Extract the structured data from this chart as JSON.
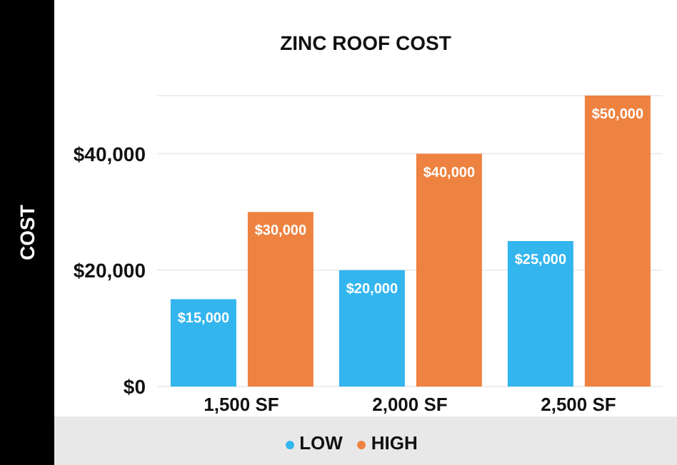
{
  "chart_data": {
    "type": "bar",
    "title": "ZINC ROOF COST",
    "ylabel": "COST",
    "categories": [
      "1,500 SF",
      "2,000 SF",
      "2,500 SF"
    ],
    "series": [
      {
        "name": "LOW",
        "color": "#33b5ee",
        "values": [
          15000,
          20000,
          25000
        ],
        "value_labels": [
          "$15,000",
          "$20,000",
          "$25,000"
        ]
      },
      {
        "name": "HIGH",
        "color": "#ee8240",
        "values": [
          30000,
          40000,
          50000
        ],
        "value_labels": [
          "$30,000",
          "$40,000",
          "$50,000"
        ]
      }
    ],
    "ylim": [
      0,
      50000
    ],
    "yticks": [
      {
        "value": 0,
        "label": "$0"
      },
      {
        "value": 20000,
        "label": "$20,000"
      },
      {
        "value": 40000,
        "label": "$40,000"
      }
    ],
    "grid": "y",
    "legend": "bottom"
  }
}
